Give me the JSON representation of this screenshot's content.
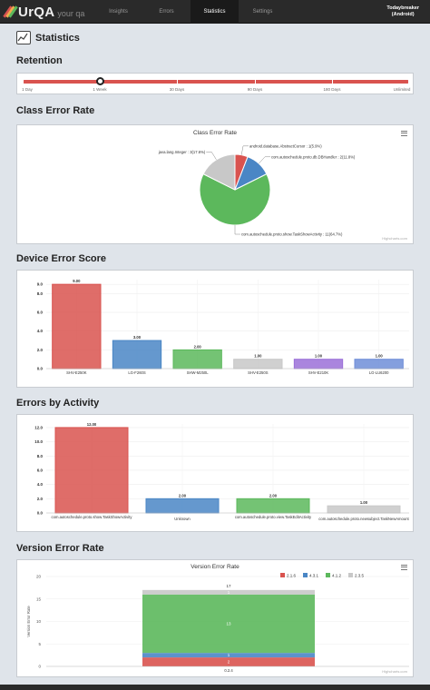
{
  "app": {
    "logo_text": "UrQA",
    "logo_tagline": "your qa",
    "nav": [
      {
        "label": "Insights",
        "active": false
      },
      {
        "label": "Errors",
        "active": false
      },
      {
        "label": "Statistics",
        "active": true
      },
      {
        "label": "Settings",
        "active": false
      }
    ],
    "user": {
      "name": "Todaybreaker",
      "platform": "(Android)"
    }
  },
  "page": {
    "title": "Statistics",
    "icon": "chart-icon"
  },
  "retention": {
    "title": "Retention",
    "ticks": [
      "1 Day",
      "1 Week",
      "30 Days",
      "90 Days",
      "180 Days",
      "Unlimited"
    ],
    "selected": "1 Week",
    "track_color": "#d9534f"
  },
  "class_error_rate": {
    "section_title": "Class Error Rate",
    "credits": "Highcharts.com",
    "chart_data": {
      "type": "pie",
      "title": "Class Error Rate",
      "slices": [
        {
          "name": "android.database.AbstractCursor",
          "label": "android.database.AbstractCursor : 1(5.9%)",
          "value": 1,
          "percent": 5.9,
          "color": "#d9534f"
        },
        {
          "name": "com.autoschedule.proto.db.DBHandler",
          "label": "com.autoschedule.proto.db.DBHandler : 2(11.8%)",
          "value": 2,
          "percent": 11.8,
          "color": "#4a86c5"
        },
        {
          "name": "com.autoschedule.proto.show.TaskShowActivity",
          "label": "com.autoschedule.proto.show.TaskShowActivity : 11(64.7%)",
          "value": 11,
          "percent": 64.7,
          "color": "#5cb85c"
        },
        {
          "name": "java.lang.Integer",
          "label": "java.lang.Integer : 3(17.6%)",
          "value": 3,
          "percent": 17.6,
          "color": "#c8c8c8"
        }
      ]
    }
  },
  "device_error_score": {
    "section_title": "Device Error Score",
    "chart_data": {
      "type": "bar",
      "categories": [
        "SHV-E250K",
        "LG-F260S",
        "SHW-M250L",
        "SHV-E250S",
        "SHV-E210K",
        "LG-LU6200"
      ],
      "values": [
        9.0,
        3.0,
        2.0,
        1.0,
        1.0,
        1.0
      ],
      "value_labels": [
        "9.00",
        "3.00",
        "2.00",
        "1.00",
        "1.00",
        "1.00"
      ],
      "colors": [
        "#d9534f",
        "#4a86c5",
        "#5cb85c",
        "#c8c8c8",
        "#9b70d8",
        "#6f8ed8"
      ],
      "ylim": [
        0,
        9.5
      ],
      "yticks": [
        "0.0",
        "2.0",
        "4.0",
        "6.0",
        "8.0",
        "9.0"
      ],
      "yticks_values": [
        0,
        2,
        4,
        6,
        8,
        9
      ]
    }
  },
  "errors_by_activity": {
    "section_title": "Errors by Activity",
    "chart_data": {
      "type": "bar",
      "categories": [
        "com.autoschedule.proto.show.TaskShowActivity",
        "Unknown",
        "com.autoschedule.proto.view.TaskEditActivity",
        "com.autoschedule.proto.newsubject.TaskNewAmount"
      ],
      "values": [
        12.0,
        2.0,
        2.0,
        1.0
      ],
      "value_labels": [
        "12.00",
        "2.00",
        "2.00",
        "1.00"
      ],
      "colors": [
        "#d9534f",
        "#4a86c5",
        "#5cb85c",
        "#c8c8c8"
      ],
      "ylim": [
        0,
        12.5
      ],
      "yticks": [
        "0.0",
        "2.0",
        "4.0",
        "6.0",
        "8.0",
        "10.0",
        "12.0"
      ],
      "yticks_values": [
        0,
        2,
        4,
        6,
        8,
        10,
        12
      ]
    }
  },
  "version_error_rate": {
    "section_title": "Version Error Rate",
    "credits": "Highcharts.com",
    "chart_data": {
      "type": "bar",
      "stacked": true,
      "title": "Version Error Rate",
      "ylabel": "Version Error Rate",
      "categories": [
        "0.2.4"
      ],
      "series": [
        {
          "name": "2.1.6",
          "values": [
            2
          ],
          "color": "#d9534f"
        },
        {
          "name": "4.3.1",
          "values": [
            1
          ],
          "color": "#4a86c5"
        },
        {
          "name": "4.1.2",
          "values": [
            13
          ],
          "color": "#5cb85c"
        },
        {
          "name": "2.3.5",
          "values": [
            1
          ],
          "color": "#c8c8c8"
        }
      ],
      "segment_labels": [
        "2",
        "1",
        "13",
        "1"
      ],
      "total_label": "17",
      "ylim": [
        0,
        20
      ],
      "yticks": [
        "0",
        "5",
        "10",
        "15",
        "20"
      ],
      "yticks_values": [
        0,
        5,
        10,
        15,
        20
      ],
      "legend": "top-right"
    }
  }
}
